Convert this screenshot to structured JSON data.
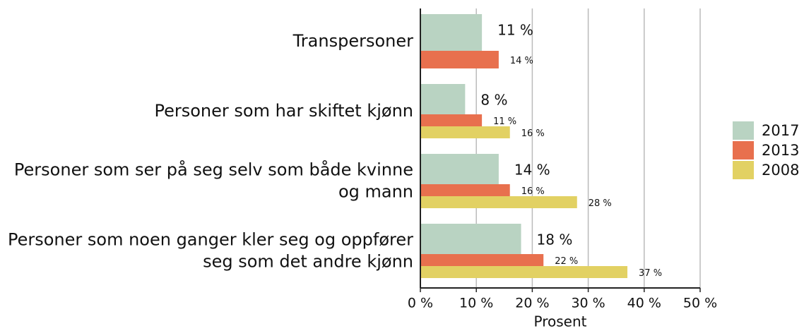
{
  "chart_data": {
    "type": "bar",
    "orientation": "horizontal",
    "categories": [
      "Transpersoner",
      "Personer som har skiftet kjønn",
      "Personer som ser på seg selv som både kvinne\nog mann",
      "Personer som noen ganger kler seg og oppfører\nseg som det andre kjønn"
    ],
    "series": [
      {
        "name": "2017",
        "color": "#b9d3c2",
        "values": [
          11,
          8,
          14,
          18
        ],
        "value_labels": [
          "11 %",
          "8 %",
          "14 %",
          "18 %"
        ]
      },
      {
        "name": "2013",
        "color": "#e8704e",
        "values": [
          14,
          11,
          16,
          22
        ],
        "value_labels": [
          "14 %",
          "11 %",
          "16 %",
          "22 %"
        ]
      },
      {
        "name": "2008",
        "color": "#e2d163",
        "values": [
          null,
          16,
          28,
          37
        ],
        "value_labels": [
          null,
          "16 %",
          "28 %",
          "37 %"
        ]
      }
    ],
    "xlabel": "Prosent",
    "xlim": [
      0,
      50
    ],
    "xticks": [
      {
        "value": 0,
        "label": "0 %"
      },
      {
        "value": 10,
        "label": "10 %"
      },
      {
        "value": 20,
        "label": "20 %"
      },
      {
        "value": 30,
        "label": "30 %"
      },
      {
        "value": 40,
        "label": "40 %"
      },
      {
        "value": 50,
        "label": "50 %"
      }
    ],
    "grid": true,
    "legend": "right"
  }
}
